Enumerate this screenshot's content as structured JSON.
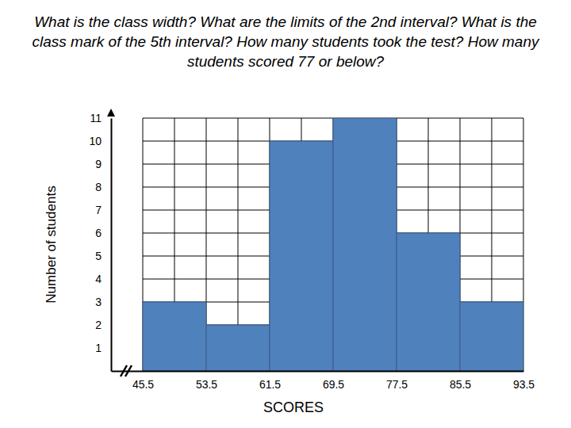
{
  "chart_data": {
    "type": "histogram",
    "title": "What is the class width? What are the limits of the 2nd interval? What is the class mark of the 5th interval? How many students took the test? How many students scored 77 or below?",
    "x_label": "SCORES",
    "y_label": "Number of students",
    "bins": [
      45.5,
      53.5,
      61.5,
      69.5,
      77.5,
      85.5,
      93.5
    ],
    "values": [
      3,
      2,
      10,
      11,
      6,
      3
    ],
    "color": "#4f81bd",
    "xlim": [
      41.5,
      93.5
    ],
    "xticks": [
      45.5,
      53.5,
      61.5,
      69.5,
      77.5,
      85.5,
      93.5
    ],
    "ylim": [
      0,
      11
    ],
    "yticks": [
      1,
      2,
      3,
      4,
      5,
      6,
      7,
      8,
      9,
      10,
      11
    ],
    "grid": true
  }
}
